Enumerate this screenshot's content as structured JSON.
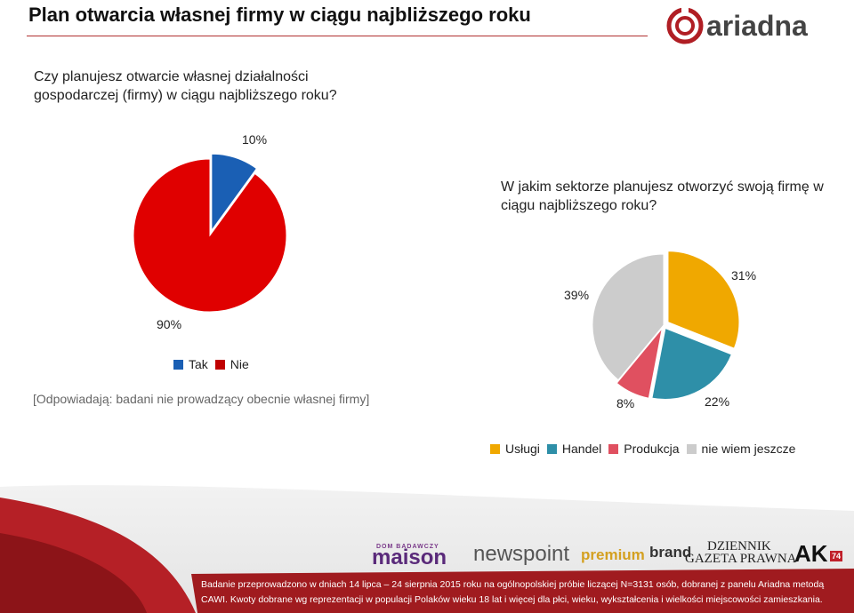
{
  "header": {
    "title": "Plan otwarcia własnej firmy w ciągu najbliższego roku",
    "logo_text": "ariadna"
  },
  "question1": "Czy planujesz otwarcie własnej działalności gospodarczej (firmy) w ciągu najbliższego roku?",
  "question2": "W jakim sektorze planujesz otworzyć swoją firmę w ciągu najbliższego roku?",
  "note": "[Odpowiadają: badani nie prowadzący obecnie własnej firmy]",
  "chart_data": [
    {
      "type": "pie",
      "categories": [
        "Tak",
        "Nie"
      ],
      "values": [
        10,
        90
      ],
      "labels": [
        "10%",
        "90%"
      ],
      "colors": [
        "#1a5fb4",
        "#e00000"
      ],
      "legend": [
        "Tak",
        "Nie"
      ],
      "legend_position": "bottom"
    },
    {
      "type": "pie",
      "categories": [
        "Usługi",
        "Handel",
        "Produkcja",
        "nie wiem jeszcze"
      ],
      "values": [
        31,
        22,
        8,
        39
      ],
      "labels": [
        "31%",
        "22%",
        "8%",
        "39%"
      ],
      "colors": [
        "#f0a800",
        "#2e8fa8",
        "#e05060",
        "#cccccc"
      ],
      "legend": [
        "Usługi",
        "Handel",
        "Produkcja",
        "nie wiem jeszcze"
      ],
      "legend_position": "bottom"
    }
  ],
  "partners": {
    "p1_small": "DOM BADAWCZY",
    "p1": "maison",
    "p2": "newspoint",
    "p3a": "premium",
    "p3b": "brand",
    "p4a": "DZIENNIK",
    "p4b": "GAZETA PRAWNA",
    "p5": "AK",
    "p5_badge": "74"
  },
  "footer": {
    "line1": "Badanie przeprowadzono w dniach 14 lipca – 24 sierpnia 2015 roku na ogólnopolskiej próbie liczącej N=3131 osób, dobranej z panelu Ariadna metodą",
    "line2": "CAWI. Kwoty dobrane wg reprezentacji w populacji Polaków wieku 18 lat i więcej dla płci, wieku, wykształcenia i wielkości miejscowości zamieszkania."
  },
  "colors": {
    "accent": "#b01e24",
    "footer_bg": "#a01b1f"
  }
}
